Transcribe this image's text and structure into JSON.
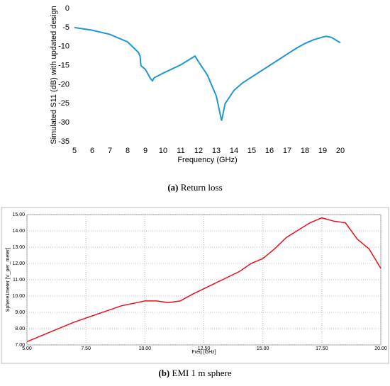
{
  "chart_data": [
    {
      "type": "line",
      "xlabel": "Frequency (GHz)",
      "ylabel": "Simulated S11 (dB) with updated design",
      "caption_label": "(a)",
      "caption": "Return loss",
      "x": [
        5,
        6,
        7,
        8,
        8.6,
        8.7,
        8.75,
        9,
        9.3,
        9.4,
        9.5,
        10,
        11,
        11.8,
        12,
        12.5,
        13,
        13.3,
        13.5,
        14,
        14.5,
        15,
        15.5,
        16,
        16.5,
        17,
        17.5,
        18,
        18.5,
        19,
        19.2,
        19.5,
        20
      ],
      "values": [
        -5,
        -5.7,
        -6.8,
        -8.8,
        -11.5,
        -12.5,
        -15,
        -16,
        -18.5,
        -19,
        -18.2,
        -17,
        -14.8,
        -12.5,
        -14,
        -17.5,
        -23,
        -29.5,
        -25,
        -21.5,
        -19.5,
        -18,
        -16.5,
        -15,
        -13.5,
        -12,
        -10.5,
        -9.2,
        -8.2,
        -7.5,
        -7.3,
        -7.6,
        -9
      ],
      "color": "#2196d3",
      "grid": false,
      "xlim": [
        5,
        20
      ],
      "xticks": [
        5,
        6,
        7,
        8,
        9,
        10,
        11,
        12,
        13,
        14,
        15,
        16,
        17,
        18,
        19,
        20
      ],
      "ylim": [
        -35,
        0
      ],
      "yticks": [
        0,
        -5,
        -10,
        -15,
        -20,
        -25,
        -30,
        -35
      ]
    },
    {
      "type": "line",
      "xlabel": "Freq [GHz]",
      "ylabel": "Sphere1meter [V_per_meter]",
      "caption_label": "(b)",
      "caption": "EMI 1 m sphere",
      "x": [
        5,
        6,
        7,
        8,
        9,
        10,
        10.5,
        11,
        11.5,
        12,
        13,
        14,
        14.5,
        15,
        15.5,
        16,
        17,
        17.5,
        18,
        18.5,
        19,
        19.5,
        20
      ],
      "values": [
        7.2,
        7.8,
        8.4,
        8.9,
        9.4,
        9.7,
        9.7,
        9.6,
        9.7,
        10.1,
        10.8,
        11.5,
        12.0,
        12.3,
        12.9,
        13.6,
        14.5,
        14.8,
        14.6,
        14.5,
        13.5,
        12.9,
        11.7
      ],
      "color": "#e8101a",
      "grid": true,
      "xlim": [
        5,
        20
      ],
      "xticks": [
        {
          "value": 5,
          "label": "5.00"
        },
        {
          "value": 7.5,
          "label": "7.50"
        },
        {
          "value": 10,
          "label": "10.00"
        },
        {
          "value": 12.5,
          "label": "12.50"
        },
        {
          "value": 15,
          "label": "15.00"
        },
        {
          "value": 17.5,
          "label": "17.50"
        },
        {
          "value": 20,
          "label": "20.00"
        }
      ],
      "ylim": [
        7,
        15
      ],
      "yticks": [
        {
          "value": 7,
          "label": "7.00"
        },
        {
          "value": 8,
          "label": "8.00"
        },
        {
          "value": 9,
          "label": "9.00"
        },
        {
          "value": 10,
          "label": "10.00"
        },
        {
          "value": 11,
          "label": "11.00"
        },
        {
          "value": 12,
          "label": "12.00"
        },
        {
          "value": 13,
          "label": "13.00"
        },
        {
          "value": 14,
          "label": "14.00"
        },
        {
          "value": 15,
          "label": "15.00"
        }
      ]
    }
  ]
}
